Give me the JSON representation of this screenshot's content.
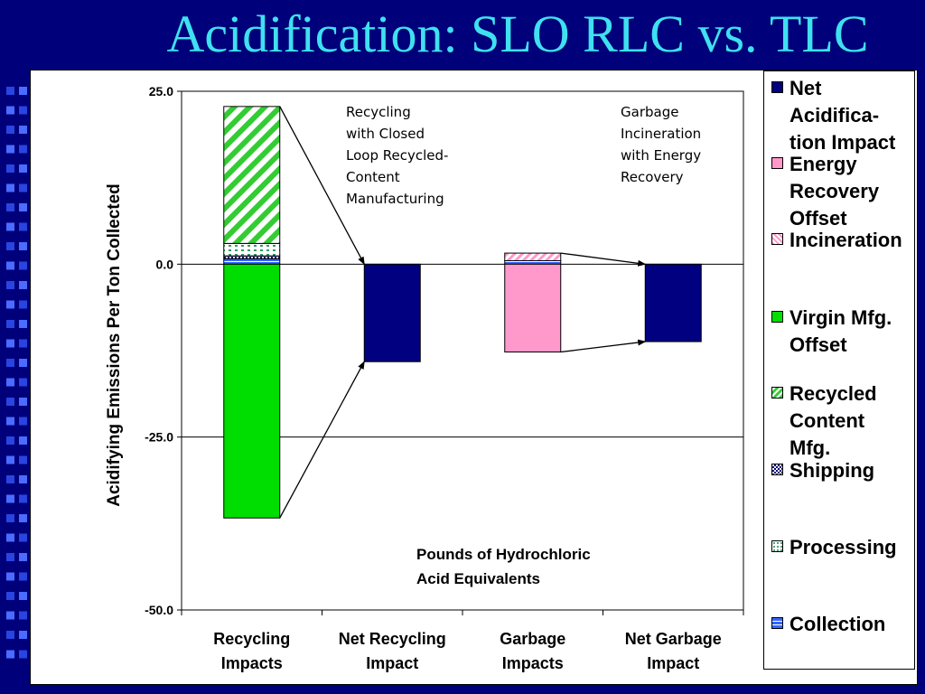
{
  "slide": {
    "title": "Acidification: SLO RLC vs. TLC"
  },
  "annotations": {
    "recycling_note": "Recycling\nwith Closed\nLoop Recycled-\nContent\nManufacturing",
    "garbage_note": "Garbage\nIncineration\nwith Energy\nRecovery",
    "unit_note": "Pounds of Hydrochloric\nAcid Equivalents"
  },
  "colors": {
    "net": "#000080",
    "energy_recovery": "#ff99cc",
    "incineration": "#ff99cc",
    "virgin_offset": "#00dd00",
    "recycled_content": "#33cc33",
    "shipping": "#000080",
    "processing": "#339966",
    "collection": "#3366ff"
  },
  "chart_data": {
    "type": "bar",
    "stacked": true,
    "ylabel": "Acidifying Emissions Per Ton Collected",
    "ylim": [
      -50,
      25
    ],
    "yticks": [
      25,
      0,
      -25,
      -50
    ],
    "ytick_labels": [
      "25.0",
      "0.0",
      "-25.0",
      "-50.0"
    ],
    "gridlines": [
      0,
      -25
    ],
    "categories": [
      "Recycling\nImpacts",
      "Net Recycling\nImpact",
      "Garbage\nImpacts",
      "Net Garbage\nImpact"
    ],
    "series": [
      {
        "key": "net",
        "name": "Net Acidifica-\ntion Impact",
        "pattern": "solid",
        "values": [
          0,
          -14.1,
          0,
          -11.2
        ]
      },
      {
        "key": "energy_recovery",
        "name": "Energy\nRecovery\nOffset",
        "pattern": "solid",
        "values": [
          0,
          0,
          -12.7,
          0
        ]
      },
      {
        "key": "incineration",
        "name": "Incineration",
        "pattern": "diag",
        "values": [
          0,
          0,
          1.1,
          0
        ]
      },
      {
        "key": "virgin_offset",
        "name": "Virgin Mfg.\nOffset",
        "pattern": "solid",
        "values": [
          -36.7,
          0,
          0,
          0
        ]
      },
      {
        "key": "recycled_content",
        "name": "Recycled\nContent\nMfg.",
        "pattern": "diag",
        "values": [
          19.8,
          0,
          0,
          0
        ]
      },
      {
        "key": "shipping",
        "name": "Shipping",
        "pattern": "checker",
        "values": [
          0.4,
          0,
          0,
          0
        ]
      },
      {
        "key": "processing",
        "name": "Processing",
        "pattern": "dots",
        "values": [
          1.8,
          0,
          0,
          0
        ]
      },
      {
        "key": "collection",
        "name": "Collection",
        "pattern": "hline",
        "values": [
          0.8,
          0,
          0.5,
          0
        ]
      }
    ]
  }
}
